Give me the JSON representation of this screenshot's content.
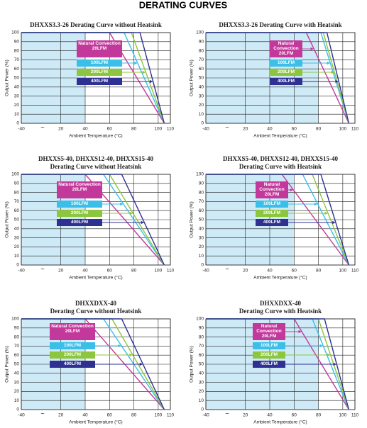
{
  "title": "DERATING CURVES",
  "chart_data": [
    {
      "type": "line",
      "title": [
        "DHXXS3.3-26 Derating Curve without Heatsink"
      ],
      "xlabel": "Ambient Temperature (°C)",
      "ylabel": "Output Power (%)",
      "xlim": [
        -40,
        110
      ],
      "x_break": {
        "from": -40,
        "to": 5,
        "label": "~"
      },
      "xticks": [
        -40,
        20,
        40,
        60,
        80,
        100,
        110
      ],
      "ylim": [
        0,
        100
      ],
      "yticks": [
        0,
        10,
        20,
        30,
        40,
        50,
        60,
        70,
        80,
        90,
        100
      ],
      "grid": true,
      "shaded": {
        "xlim": [
          -40,
          40
        ],
        "color": "#cfeaf7"
      },
      "series": [
        {
          "name": "Natural Convection\n20LFM",
          "color": "#c2399b",
          "x": [
            -40,
            60,
            105
          ],
          "values": [
            100,
            100,
            0
          ]
        },
        {
          "name": "100LFM",
          "color": "#3bbfe9",
          "x": [
            -40,
            72,
            105
          ],
          "values": [
            100,
            100,
            0
          ]
        },
        {
          "name": "200LFM",
          "color": "#8cc63e",
          "x": [
            -40,
            78,
            105
          ],
          "values": [
            100,
            100,
            0
          ]
        },
        {
          "name": "400LFM",
          "color": "#2e3192",
          "x": [
            -40,
            85,
            105
          ],
          "values": [
            100,
            100,
            0
          ]
        }
      ]
    },
    {
      "type": "line",
      "title": [
        "DHXXS3.3-26 Derating Curve with Heatsink"
      ],
      "xlabel": "Ambient Temperature (°C)",
      "ylabel": "Output Power (%)",
      "xlim": [
        -40,
        110
      ],
      "x_break": {
        "from": -40,
        "to": 5,
        "label": "~"
      },
      "xticks": [
        -40,
        20,
        40,
        60,
        80,
        100,
        110
      ],
      "ylim": [
        0,
        100
      ],
      "yticks": [
        0,
        10,
        20,
        30,
        40,
        50,
        60,
        70,
        80,
        90,
        100
      ],
      "grid": true,
      "shaded": {
        "xlim": [
          -40,
          80
        ],
        "color": "#cfeaf7"
      },
      "series": [
        {
          "name": "Natural Convection\n20LFM",
          "color": "#c2399b",
          "x": [
            -40,
            70,
            105
          ],
          "values": [
            100,
            100,
            0
          ]
        },
        {
          "name": "100LFM",
          "color": "#3bbfe9",
          "x": [
            -40,
            82,
            105
          ],
          "values": [
            100,
            100,
            0
          ]
        },
        {
          "name": "200LFM",
          "color": "#8cc63e",
          "x": [
            -40,
            84,
            105
          ],
          "values": [
            100,
            100,
            0
          ]
        },
        {
          "name": "400LFM",
          "color": "#2e3192",
          "x": [
            -40,
            87,
            105
          ],
          "values": [
            100,
            100,
            0
          ]
        }
      ]
    },
    {
      "type": "line",
      "title": [
        "DHXXS5-40, DHXXS12-40, DHXXS15-40",
        "Derating Curve without Heatsink"
      ],
      "xlabel": "Ambient Temperature (°C)",
      "ylabel": "Output Power (%)",
      "xlim": [
        -40,
        110
      ],
      "x_break": {
        "from": -40,
        "to": 5,
        "label": "~"
      },
      "xticks": [
        -40,
        20,
        40,
        60,
        80,
        100,
        110
      ],
      "ylim": [
        0,
        100
      ],
      "yticks": [
        0,
        10,
        20,
        30,
        40,
        50,
        60,
        70,
        80,
        90,
        100
      ],
      "grid": true,
      "shaded": {
        "xlim": [
          -40,
          40
        ],
        "color": "#cfeaf7"
      },
      "series": [
        {
          "name": "Natural Convection\n20LFM",
          "color": "#c2399b",
          "x": [
            -40,
            40,
            105
          ],
          "values": [
            100,
            100,
            0
          ]
        },
        {
          "name": "100LFM",
          "color": "#3bbfe9",
          "x": [
            -40,
            55,
            105
          ],
          "values": [
            100,
            100,
            0
          ]
        },
        {
          "name": "200LFM",
          "color": "#8cc63e",
          "x": [
            -40,
            60,
            105
          ],
          "values": [
            100,
            100,
            0
          ]
        },
        {
          "name": "400LFM",
          "color": "#2e3192",
          "x": [
            -40,
            70,
            105
          ],
          "values": [
            100,
            100,
            0
          ]
        }
      ]
    },
    {
      "type": "line",
      "title": [
        "DHXXS5-40, DHXXS12-40, DHXXS15-40",
        "Derating Curve with Heatsink"
      ],
      "xlabel": "Ambient Temperature (°C)",
      "ylabel": "Output Power (%)",
      "xlim": [
        -40,
        110
      ],
      "x_break": {
        "from": -40,
        "to": 5,
        "label": "~"
      },
      "xticks": [
        -40,
        20,
        40,
        60,
        80,
        100,
        110
      ],
      "ylim": [
        0,
        100
      ],
      "yticks": [
        0,
        10,
        20,
        30,
        40,
        50,
        60,
        70,
        80,
        90,
        100
      ],
      "grid": true,
      "shaded": {
        "xlim": [
          -40,
          60
        ],
        "color": "#cfeaf7"
      },
      "series": [
        {
          "name": "Natural Convection\n20LFM",
          "color": "#c2399b",
          "x": [
            -40,
            50,
            105
          ],
          "values": [
            100,
            100,
            0
          ]
        },
        {
          "name": "100LFM",
          "color": "#3bbfe9",
          "x": [
            -40,
            67,
            105
          ],
          "values": [
            100,
            100,
            0
          ]
        },
        {
          "name": "200LFM",
          "color": "#8cc63e",
          "x": [
            -40,
            75,
            105
          ],
          "values": [
            100,
            100,
            0
          ]
        },
        {
          "name": "400LFM",
          "color": "#2e3192",
          "x": [
            -40,
            82,
            105
          ],
          "values": [
            100,
            100,
            0
          ]
        }
      ]
    },
    {
      "type": "line",
      "title": [
        "DHXXDXX-40",
        "Derating Curve without Heatsink"
      ],
      "xlabel": "Ambient Temperature (°C)",
      "ylabel": "Output Power (%)",
      "xlim": [
        -40,
        110
      ],
      "x_break": {
        "from": -40,
        "to": 5,
        "label": "~"
      },
      "xticks": [
        -40,
        20,
        40,
        60,
        80,
        100,
        110
      ],
      "ylim": [
        0,
        100
      ],
      "yticks": [
        0,
        10,
        20,
        30,
        40,
        50,
        60,
        70,
        80,
        90,
        100
      ],
      "grid": true,
      "shaded": {
        "xlim": [
          -40,
          40
        ],
        "color": "#cfeaf7"
      },
      "series": [
        {
          "name": "Natural Convection\n20LFM",
          "color": "#c2399b",
          "x": [
            -40,
            40,
            105
          ],
          "values": [
            100,
            100,
            0
          ]
        },
        {
          "name": "100LFM",
          "color": "#3bbfe9",
          "x": [
            -40,
            55,
            105
          ],
          "values": [
            100,
            100,
            0
          ]
        },
        {
          "name": "200LFM",
          "color": "#8cc63e",
          "x": [
            -40,
            62,
            105
          ],
          "values": [
            100,
            100,
            0
          ]
        },
        {
          "name": "400LFM",
          "color": "#2e3192",
          "x": [
            -40,
            70,
            105
          ],
          "values": [
            100,
            100,
            0
          ]
        }
      ]
    },
    {
      "type": "line",
      "title": [
        "DHXXDXX-40",
        "Derating Curve with Heatsink"
      ],
      "xlabel": "Ambient Temperature (°C)",
      "ylabel": "Output Power (%)",
      "xlim": [
        -40,
        110
      ],
      "x_break": {
        "from": -40,
        "to": 5,
        "label": "~"
      },
      "xticks": [
        -40,
        20,
        40,
        60,
        80,
        100,
        110
      ],
      "ylim": [
        0,
        100
      ],
      "yticks": [
        0,
        10,
        20,
        30,
        40,
        50,
        60,
        70,
        80,
        90,
        100
      ],
      "grid": true,
      "shaded": {
        "xlim": [
          -40,
          80
        ],
        "color": "#cfeaf7"
      },
      "series": [
        {
          "name": "Natural Convection\n20LFM",
          "color": "#c2399b",
          "x": [
            -40,
            60,
            105
          ],
          "values": [
            100,
            100,
            0
          ]
        },
        {
          "name": "100LFM",
          "color": "#3bbfe9",
          "x": [
            -40,
            75,
            105
          ],
          "values": [
            100,
            100,
            0
          ]
        },
        {
          "name": "200LFM",
          "color": "#8cc63e",
          "x": [
            -40,
            80,
            105
          ],
          "values": [
            100,
            100,
            0
          ]
        },
        {
          "name": "400LFM",
          "color": "#2e3192",
          "x": [
            -40,
            85,
            105
          ],
          "values": [
            100,
            100,
            0
          ]
        }
      ]
    }
  ]
}
